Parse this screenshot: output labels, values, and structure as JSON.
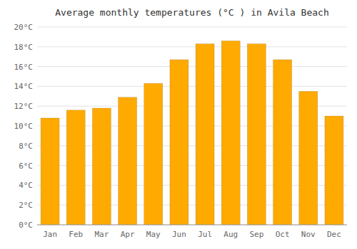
{
  "chart_data": {
    "type": "bar",
    "title": "Average monthly temperatures (°C ) in Avila Beach",
    "categories": [
      "Jan",
      "Feb",
      "Mar",
      "Apr",
      "May",
      "Jun",
      "Jul",
      "Aug",
      "Sep",
      "Oct",
      "Nov",
      "Dec"
    ],
    "values": [
      10.8,
      11.6,
      11.8,
      12.9,
      14.3,
      16.7,
      18.3,
      18.6,
      18.3,
      16.7,
      13.5,
      11.0
    ],
    "color": "#FFAA00",
    "ylim": [
      0,
      20
    ],
    "yticks": [
      {
        "value": 0,
        "label": "0°C"
      },
      {
        "value": 2,
        "label": "2°C"
      },
      {
        "value": 4,
        "label": "4°C"
      },
      {
        "value": 6,
        "label": "6°C"
      },
      {
        "value": 8,
        "label": "8°C"
      },
      {
        "value": 10,
        "label": "10°C"
      },
      {
        "value": 12,
        "label": "12°C"
      },
      {
        "value": 14,
        "label": "14°C"
      },
      {
        "value": 16,
        "label": "16°C"
      },
      {
        "value": 18,
        "label": "18°C"
      },
      {
        "value": 20,
        "label": "20°C"
      }
    ],
    "grid": true
  }
}
